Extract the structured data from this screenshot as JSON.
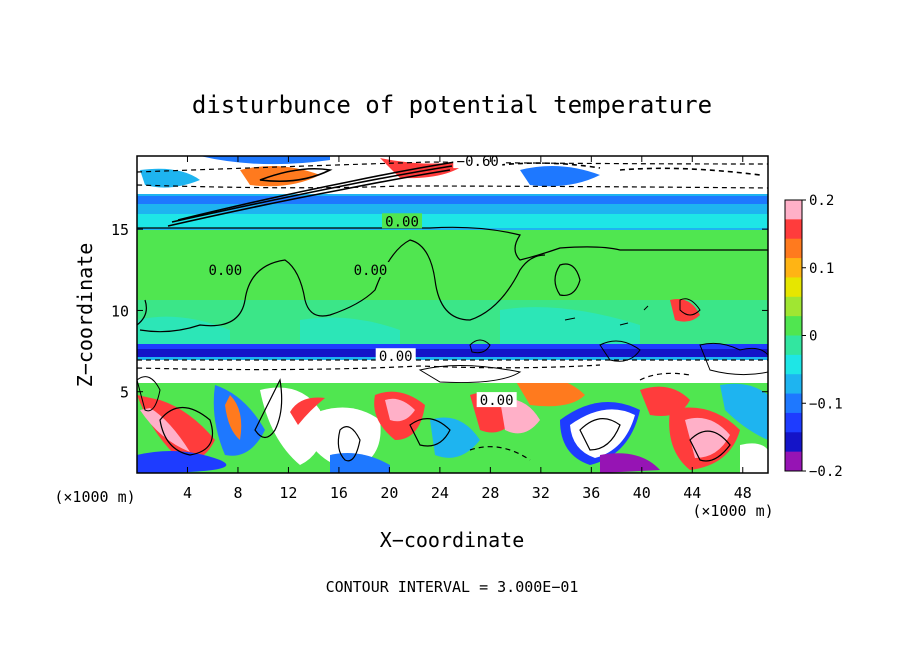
{
  "chart_data": {
    "type": "heatmap",
    "title": "disturbunce of potential temperature",
    "xlabel": "X−coordinate",
    "ylabel": "Z−coordinate",
    "x_unit_left": "(×1000 m)",
    "x_unit_right": "(×1000 m)",
    "footer": "CONTOUR INTERVAL = 3.000E−01",
    "xlim": [
      0,
      50
    ],
    "ylim": [
      0,
      19.5
    ],
    "x_ticks": [
      {
        "value": 4,
        "label": "4"
      },
      {
        "value": 8,
        "label": "8"
      },
      {
        "value": 12,
        "label": "12"
      },
      {
        "value": 16,
        "label": "16"
      },
      {
        "value": 20,
        "label": "20"
      },
      {
        "value": 24,
        "label": "24"
      },
      {
        "value": 28,
        "label": "28"
      },
      {
        "value": 32,
        "label": "32"
      },
      {
        "value": 36,
        "label": "36"
      },
      {
        "value": 40,
        "label": "40"
      },
      {
        "value": 44,
        "label": "44"
      },
      {
        "value": 48,
        "label": "48"
      }
    ],
    "y_ticks": [
      {
        "value": 5,
        "label": "5"
      },
      {
        "value": 10,
        "label": "10"
      },
      {
        "value": 15,
        "label": "15"
      }
    ],
    "colorbar": {
      "range": [
        -0.2,
        0.2
      ],
      "ticks": [
        {
          "value": 0.2,
          "label": "0.2"
        },
        {
          "value": 0.1,
          "label": "0.1"
        },
        {
          "value": 0,
          "label": "0"
        },
        {
          "value": -0.1,
          "label": "−0.1"
        },
        {
          "value": -0.2,
          "label": "−0.2"
        }
      ],
      "colors": [
        "#ffb0c8",
        "#ff3c3c",
        "#ff7a1e",
        "#ffb414",
        "#e6e600",
        "#a0e632",
        "#50e650",
        "#32e6a0",
        "#1ee6e6",
        "#1eb4f0",
        "#1e78ff",
        "#1e3cff",
        "#1414c8",
        "#9614b4"
      ]
    },
    "contour_labels": [
      {
        "x": 27,
        "z": 19.0,
        "text": "−0.60"
      },
      {
        "x": 21,
        "z": 15.3,
        "text": "0.00"
      },
      {
        "x": 7,
        "z": 12.3,
        "text": "0.00"
      },
      {
        "x": 18.5,
        "z": 12.3,
        "text": "0.00"
      },
      {
        "x": 20.5,
        "z": 7.0,
        "text": "0.00"
      },
      {
        "x": 28.5,
        "z": 4.3,
        "text": "0.00"
      }
    ],
    "layers": [
      {
        "z": [
          0,
          8
        ],
        "description_value": "mixed ±0.2 turbulent"
      },
      {
        "z": [
          8,
          8.7
        ],
        "value": -0.2
      },
      {
        "z": [
          8.7,
          15.6
        ],
        "value": 0.0
      },
      {
        "z": [
          15.6,
          17.6
        ],
        "value": -0.1
      },
      {
        "z": [
          17.6,
          19.5
        ],
        "value": 0.3
      }
    ]
  }
}
